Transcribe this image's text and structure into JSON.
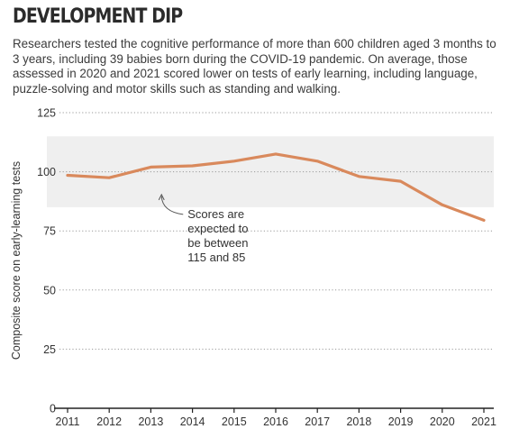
{
  "title": "DEVELOPMENT DIP",
  "subtitle": "Researchers tested the cognitive performance of more than 600 children aged 3 months to 3 years, including 39 babies born during the COVID-19 pandemic. On average, those assessed in 2020 and 2021 scored lower on tests of early learning, including language, puzzle-solving and motor skills such as standing and walking.",
  "colors": {
    "line": "#d9895c",
    "band": "#efefef",
    "grid": "#999999",
    "text": "#333333"
  },
  "chart_data": {
    "type": "line",
    "title": "DEVELOPMENT DIP",
    "ylabel": "Composite score on early-learning tests",
    "xlabel": "",
    "x": [
      2011,
      2012,
      2013,
      2014,
      2015,
      2016,
      2017,
      2018,
      2019,
      2020,
      2021
    ],
    "values": [
      98.5,
      97.5,
      102,
      102.5,
      104.5,
      107.5,
      104.5,
      98,
      96,
      86,
      79.5
    ],
    "ylim": [
      0,
      125
    ],
    "yticks": [
      0,
      25,
      50,
      75,
      100,
      125
    ],
    "band": [
      85,
      115
    ],
    "grid": "horizontal-dotted",
    "annotation": {
      "lines": [
        "Scores are",
        "expected to",
        "be between",
        "115 and 85"
      ],
      "x": 2013.3,
      "y": 91.5
    }
  }
}
